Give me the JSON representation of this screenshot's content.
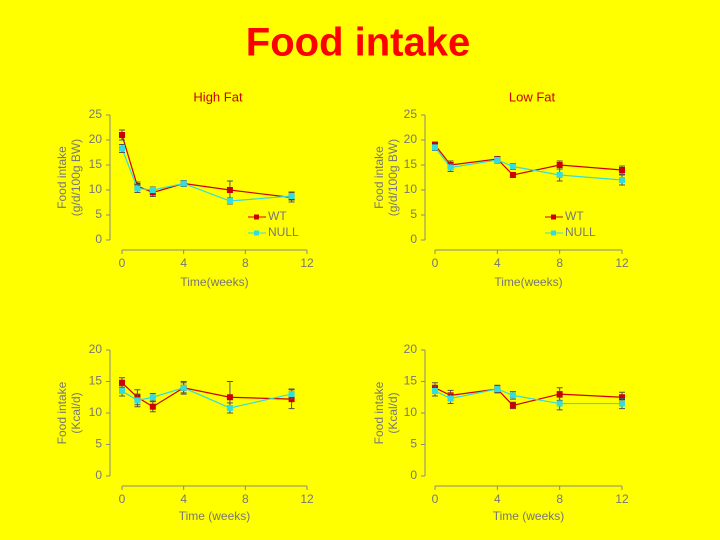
{
  "title": "Food intake",
  "chart_data": [
    {
      "type": "line",
      "subtitle": "High Fat",
      "xlabel": "Time(weeks)",
      "ylabel": "Food intake (g/d/100g BW)",
      "x": [
        0,
        1,
        2,
        4,
        7,
        11
      ],
      "xlim": [
        0,
        12
      ],
      "xticks": [
        0,
        4,
        8,
        12
      ],
      "ylim": [
        0,
        25
      ],
      "yticks": [
        0,
        5,
        10,
        15,
        20,
        25
      ],
      "legend": "lower right",
      "series": [
        {
          "name": "WT",
          "color": "#cc0000",
          "values": [
            21,
            10.8,
            9.5,
            11.3,
            10,
            8.5
          ],
          "errors": [
            1,
            0.8,
            0.8,
            0.6,
            1.8,
            0.9
          ]
        },
        {
          "name": "NULL",
          "color": "#33dddd",
          "values": [
            18.3,
            10.3,
            10,
            11.3,
            7.8,
            8.8
          ],
          "errors": [
            0.8,
            0.8,
            0.6,
            0.6,
            0.6,
            0.8
          ]
        }
      ]
    },
    {
      "type": "line",
      "subtitle": "Low Fat",
      "xlabel": "Time(weeks)",
      "ylabel": "Food intake (g/d/100g BW)",
      "x": [
        0,
        1,
        4,
        5,
        8,
        12
      ],
      "xlim": [
        0,
        12
      ],
      "xticks": [
        0,
        4,
        8,
        12
      ],
      "ylim": [
        0,
        25
      ],
      "yticks": [
        0,
        5,
        10,
        15,
        20,
        25
      ],
      "legend": "lower right",
      "series": [
        {
          "name": "WT",
          "color": "#cc0000",
          "values": [
            19,
            15,
            16.2,
            13,
            15,
            14
          ],
          "errors": [
            0.6,
            0.8,
            0.5,
            0.5,
            0.8,
            0.8
          ]
        },
        {
          "name": "NULL",
          "color": "#33dddd",
          "values": [
            18.5,
            14.5,
            16,
            14.7,
            13,
            12
          ],
          "errors": [
            0.6,
            0.8,
            0.6,
            0.6,
            1.2,
            1
          ]
        }
      ]
    },
    {
      "type": "line",
      "xlabel": "Time (weeks)",
      "ylabel": "Food intake (Kcal/d)",
      "x": [
        0,
        1,
        2,
        4,
        7,
        11
      ],
      "xlim": [
        0,
        12
      ],
      "xticks": [
        0,
        4,
        8,
        12
      ],
      "ylim": [
        0,
        20
      ],
      "yticks": [
        0,
        5,
        10,
        15,
        20
      ],
      "series": [
        {
          "name": "WT",
          "color": "#cc0000",
          "values": [
            14.8,
            12.5,
            11,
            14,
            12.5,
            12.2
          ],
          "errors": [
            0.8,
            1.2,
            0.8,
            0.8,
            2.5,
            1.5
          ]
        },
        {
          "name": "NULL",
          "color": "#33dddd",
          "values": [
            13.5,
            12,
            12.5,
            14,
            10.8,
            13
          ],
          "errors": [
            0.8,
            1,
            0.6,
            1,
            0.8,
            0.8
          ]
        }
      ]
    },
    {
      "type": "line",
      "xlabel": "Time (weeks)",
      "ylabel": "Food intake (Kcal/d)",
      "x": [
        0,
        1,
        4,
        5,
        8,
        12
      ],
      "xlim": [
        0,
        12
      ],
      "xticks": [
        0,
        4,
        8,
        12
      ],
      "ylim": [
        0,
        20
      ],
      "yticks": [
        0,
        5,
        10,
        15,
        20
      ],
      "series": [
        {
          "name": "WT",
          "color": "#cc0000",
          "values": [
            14,
            12.8,
            13.8,
            11.2,
            13,
            12.5
          ],
          "errors": [
            0.8,
            0.8,
            0.5,
            0.5,
            1,
            0.8
          ]
        },
        {
          "name": "NULL",
          "color": "#33dddd",
          "values": [
            13.5,
            12.3,
            13.8,
            12.8,
            11.5,
            11.5
          ],
          "errors": [
            0.8,
            0.8,
            0.6,
            0.6,
            1,
            0.8
          ]
        }
      ]
    }
  ]
}
